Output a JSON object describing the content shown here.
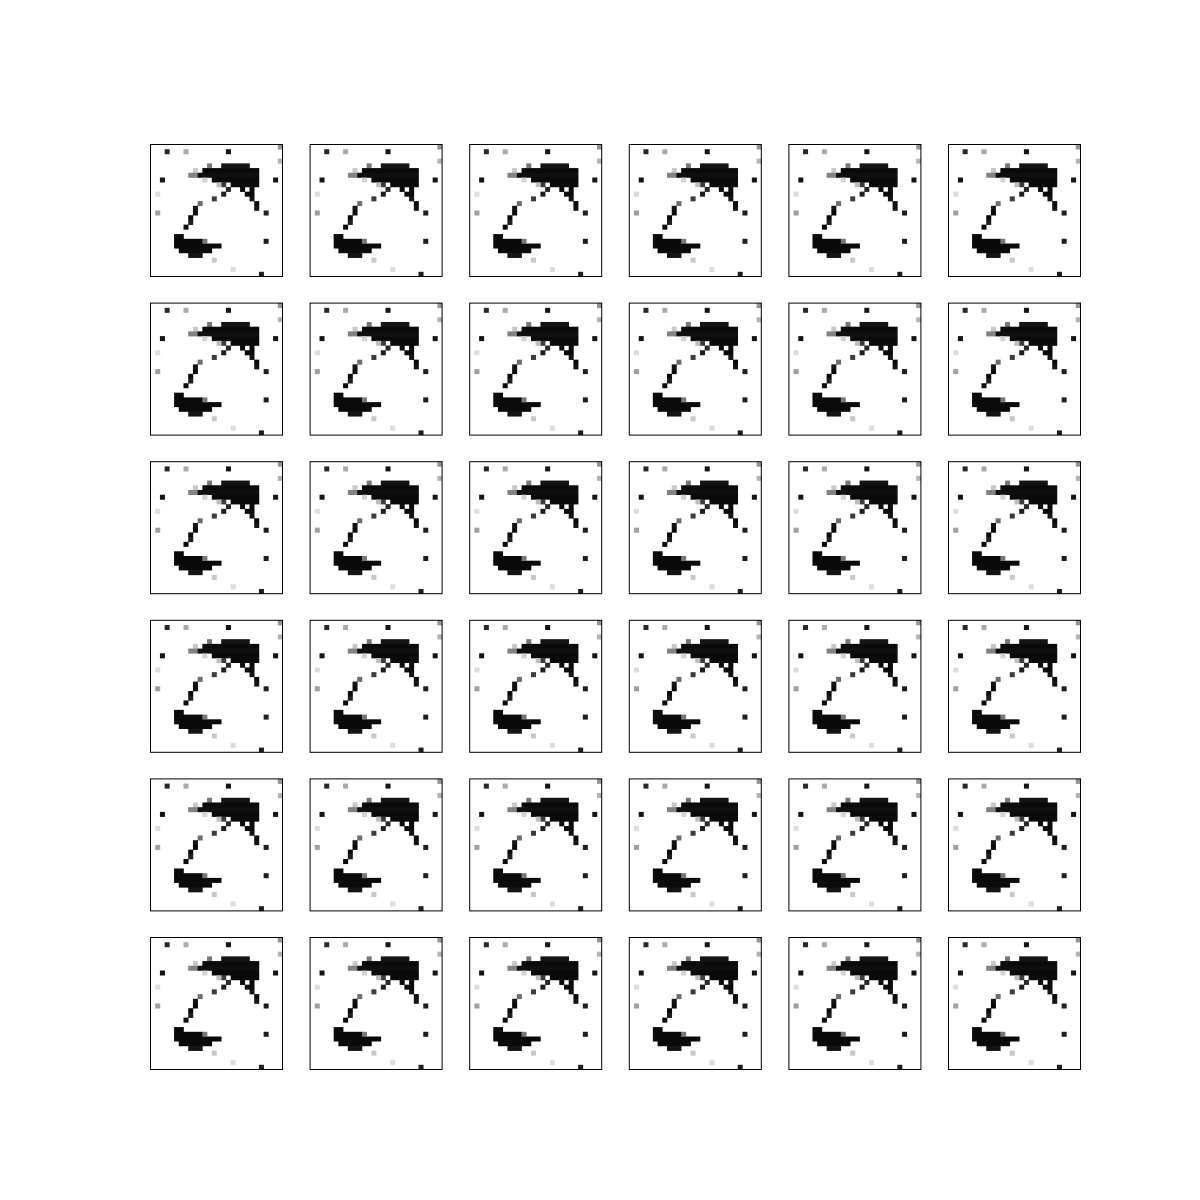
{
  "grid": {
    "rows": 6,
    "columns": 6
  }
}
